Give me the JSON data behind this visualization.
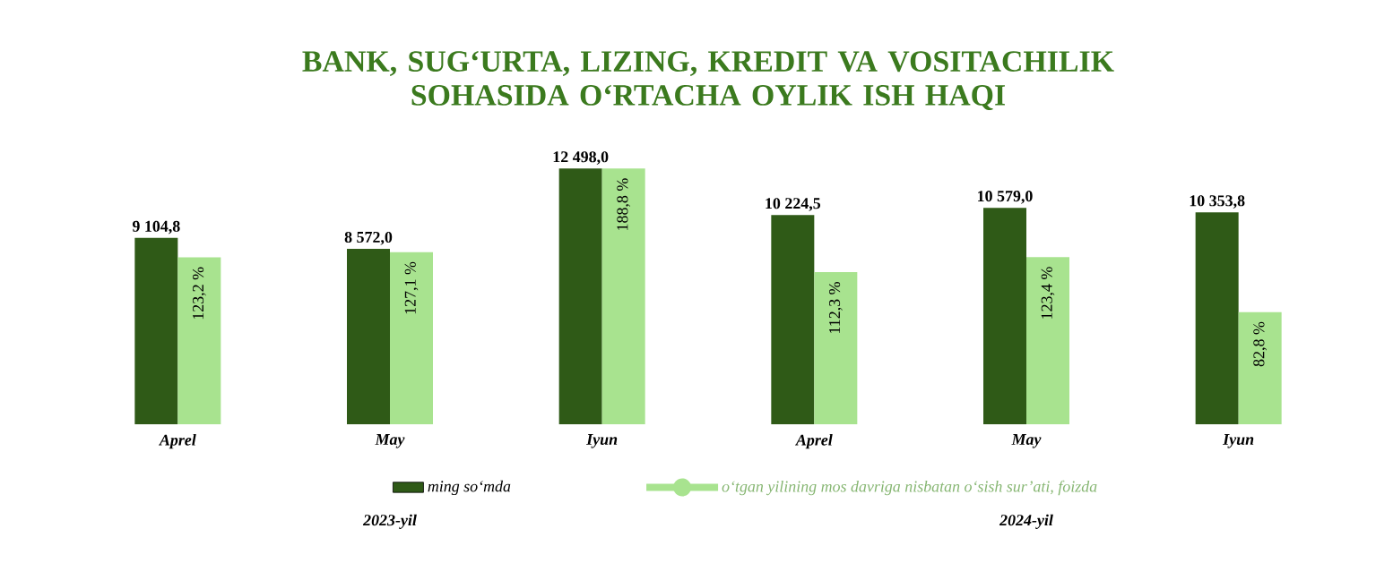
{
  "chart_data": {
    "type": "bar",
    "title": "BANK, SUG‘URTA, LIZING, KREDIT VA VOSITACHILIK SOHASIDA O‘RTACHA OYLIK ISH HAQI",
    "categories": [
      "Aprel",
      "May",
      "Iyun",
      "Aprel",
      "May",
      "Iyun"
    ],
    "series": [
      {
        "name": "ming so‘mda",
        "color": "#2f5a17",
        "values": [
          9104.8,
          8572.0,
          12498.0,
          10224.5,
          10579.0,
          10353.8
        ],
        "value_labels": [
          "9 104,8",
          "8 572,0",
          "12 498,0",
          "10 224,5",
          "10 579,0",
          "10 353,8"
        ]
      },
      {
        "name": "o‘tgan yilining mos davriga nisbatan o‘sish sur’ati, foizda",
        "color": "#a8e38f",
        "axis": "y2",
        "values": [
          123.2,
          127.1,
          188.8,
          112.3,
          123.4,
          82.8
        ],
        "value_labels": [
          "123,2 %",
          "127,1 %",
          "188,8 %",
          "112,3 %",
          "123,4 %",
          "82,8 %"
        ]
      }
    ],
    "legend": "bottom",
    "annotations": [
      "2023-yil",
      "2024-yil"
    ]
  }
}
